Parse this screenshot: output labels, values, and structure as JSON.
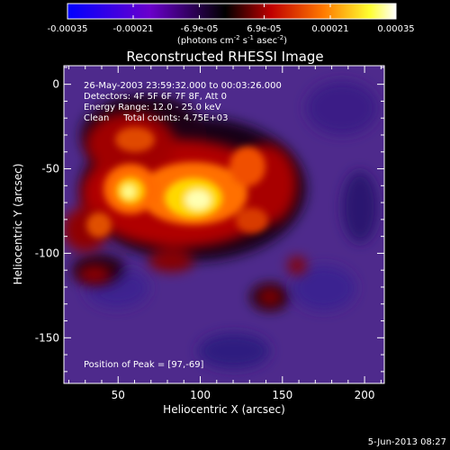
{
  "colorbar": {
    "tick_labels": [
      "-0.00035",
      "-0.00021",
      "-6.9e-05",
      "6.9e-05",
      "0.00021",
      "0.00035"
    ],
    "ticks": [
      -0.00035,
      -0.00021,
      -6.9e-05,
      6.9e-05,
      0.00021,
      0.00035
    ],
    "range": [
      -0.00035,
      0.00035
    ],
    "unit_label": "(photons cm^-2 s^-1 asec^-2)",
    "colors": [
      "#0000ff",
      "#6600cc",
      "#000000",
      "#cc0000",
      "#ff8800",
      "#ffff00",
      "#ffffff"
    ]
  },
  "image": {
    "title": "Reconstructed RHESSI Image",
    "annotations": [
      "26-May-2003 23:59:32.000 to 00:03:26.000",
      "Detectors: 4F 5F 6F 7F 8F, Att 0",
      "Energy Range: 12.0 - 25.0 keV",
      "Clean     Total counts: 4.75E+03"
    ],
    "peak_label": "Position of Peak = [97,-69]",
    "peak": [
      97,
      -69
    ],
    "x_axis": {
      "label": "Heliocentric X (arcsec)",
      "ticks": [
        50,
        100,
        150,
        200
      ],
      "range": [
        17,
        212
      ]
    },
    "y_axis": {
      "label": "Heliocentric Y (arcsec)",
      "ticks": [
        0,
        -50,
        -100,
        -150
      ],
      "range": [
        -177,
        11
      ]
    }
  },
  "footer": {
    "date": "5-Jun-2013 08:27"
  }
}
